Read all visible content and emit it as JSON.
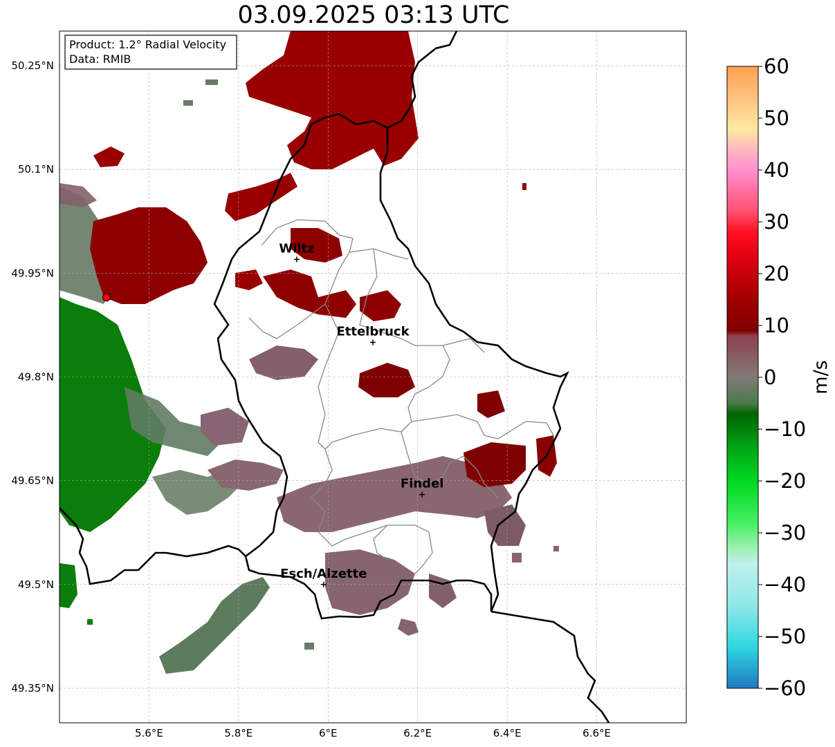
{
  "title": "03.09.2025 03:13 UTC",
  "info_box": {
    "product": "Product: 1.2° Radial Velocity",
    "data_source": "Data: RMIB"
  },
  "axes": {
    "lon_ticks": [
      {
        "value": 5.6,
        "label": "5.6°E"
      },
      {
        "value": 5.8,
        "label": "5.8°E"
      },
      {
        "value": 6.0,
        "label": "6°E"
      },
      {
        "value": 6.2,
        "label": "6.2°E"
      },
      {
        "value": 6.4,
        "label": "6.4°E"
      },
      {
        "value": 6.6,
        "label": "6.6°E"
      }
    ],
    "lat_ticks": [
      {
        "value": 50.25,
        "label": "50.25°N"
      },
      {
        "value": 50.1,
        "label": "50.1°N"
      },
      {
        "value": 49.95,
        "label": "49.95°N"
      },
      {
        "value": 49.8,
        "label": "49.8°N"
      },
      {
        "value": 49.65,
        "label": "49.65°N"
      },
      {
        "value": 49.5,
        "label": "49.5°N"
      },
      {
        "value": 49.35,
        "label": "49.35°N"
      }
    ],
    "lon_range": [
      5.4,
      6.8
    ],
    "lat_range": [
      49.3,
      50.3
    ]
  },
  "cities": [
    {
      "name": "Wiltz",
      "lon": 5.93,
      "lat": 49.97
    },
    {
      "name": "Ettelbruck",
      "lon": 6.1,
      "lat": 49.85
    },
    {
      "name": "Findel",
      "lon": 6.21,
      "lat": 49.63
    },
    {
      "name": "Esch/Alzette",
      "lon": 5.99,
      "lat": 49.5
    }
  ],
  "radar_site": {
    "lon": 5.505,
    "lat": 49.915,
    "color": "#ff0000"
  },
  "colorbar": {
    "label": "m/s",
    "min": -60,
    "max": 60,
    "tick_labels": [
      "−60",
      "−50",
      "−40",
      "−30",
      "−20",
      "−10",
      "0",
      "10",
      "20",
      "30",
      "40",
      "50",
      "60"
    ],
    "stops": [
      {
        "v": -60,
        "color": "#1f78c0"
      },
      {
        "v": -52,
        "color": "#2fd8e0"
      },
      {
        "v": -44,
        "color": "#8ee8e8"
      },
      {
        "v": -36,
        "color": "#c0f0f0"
      },
      {
        "v": -33,
        "color": "#9ef0b0"
      },
      {
        "v": -28,
        "color": "#44f060"
      },
      {
        "v": -20,
        "color": "#00d820"
      },
      {
        "v": -14,
        "color": "#00a818"
      },
      {
        "v": -7,
        "color": "#006400"
      },
      {
        "v": -5,
        "color": "#4a7a4a"
      },
      {
        "v": 0,
        "color": "#807a78"
      },
      {
        "v": 8,
        "color": "#904050"
      },
      {
        "v": 9,
        "color": "#800000"
      },
      {
        "v": 15,
        "color": "#a00000"
      },
      {
        "v": 23,
        "color": "#e00010"
      },
      {
        "v": 28,
        "color": "#ff1020"
      },
      {
        "v": 32,
        "color": "#ff5070"
      },
      {
        "v": 40,
        "color": "#ff90d0"
      },
      {
        "v": 44,
        "color": "#ffb8c0"
      },
      {
        "v": 48,
        "color": "#ffe8a0"
      },
      {
        "v": 54,
        "color": "#ffc080"
      },
      {
        "v": 60,
        "color": "#ffa050"
      }
    ]
  },
  "colors": {
    "strong_outbound": "#990000",
    "weak_outbound": "#8a6470",
    "near_zero": "#6a7a68",
    "inbound": "#008000",
    "border": "#000000",
    "canton": "#888888"
  }
}
